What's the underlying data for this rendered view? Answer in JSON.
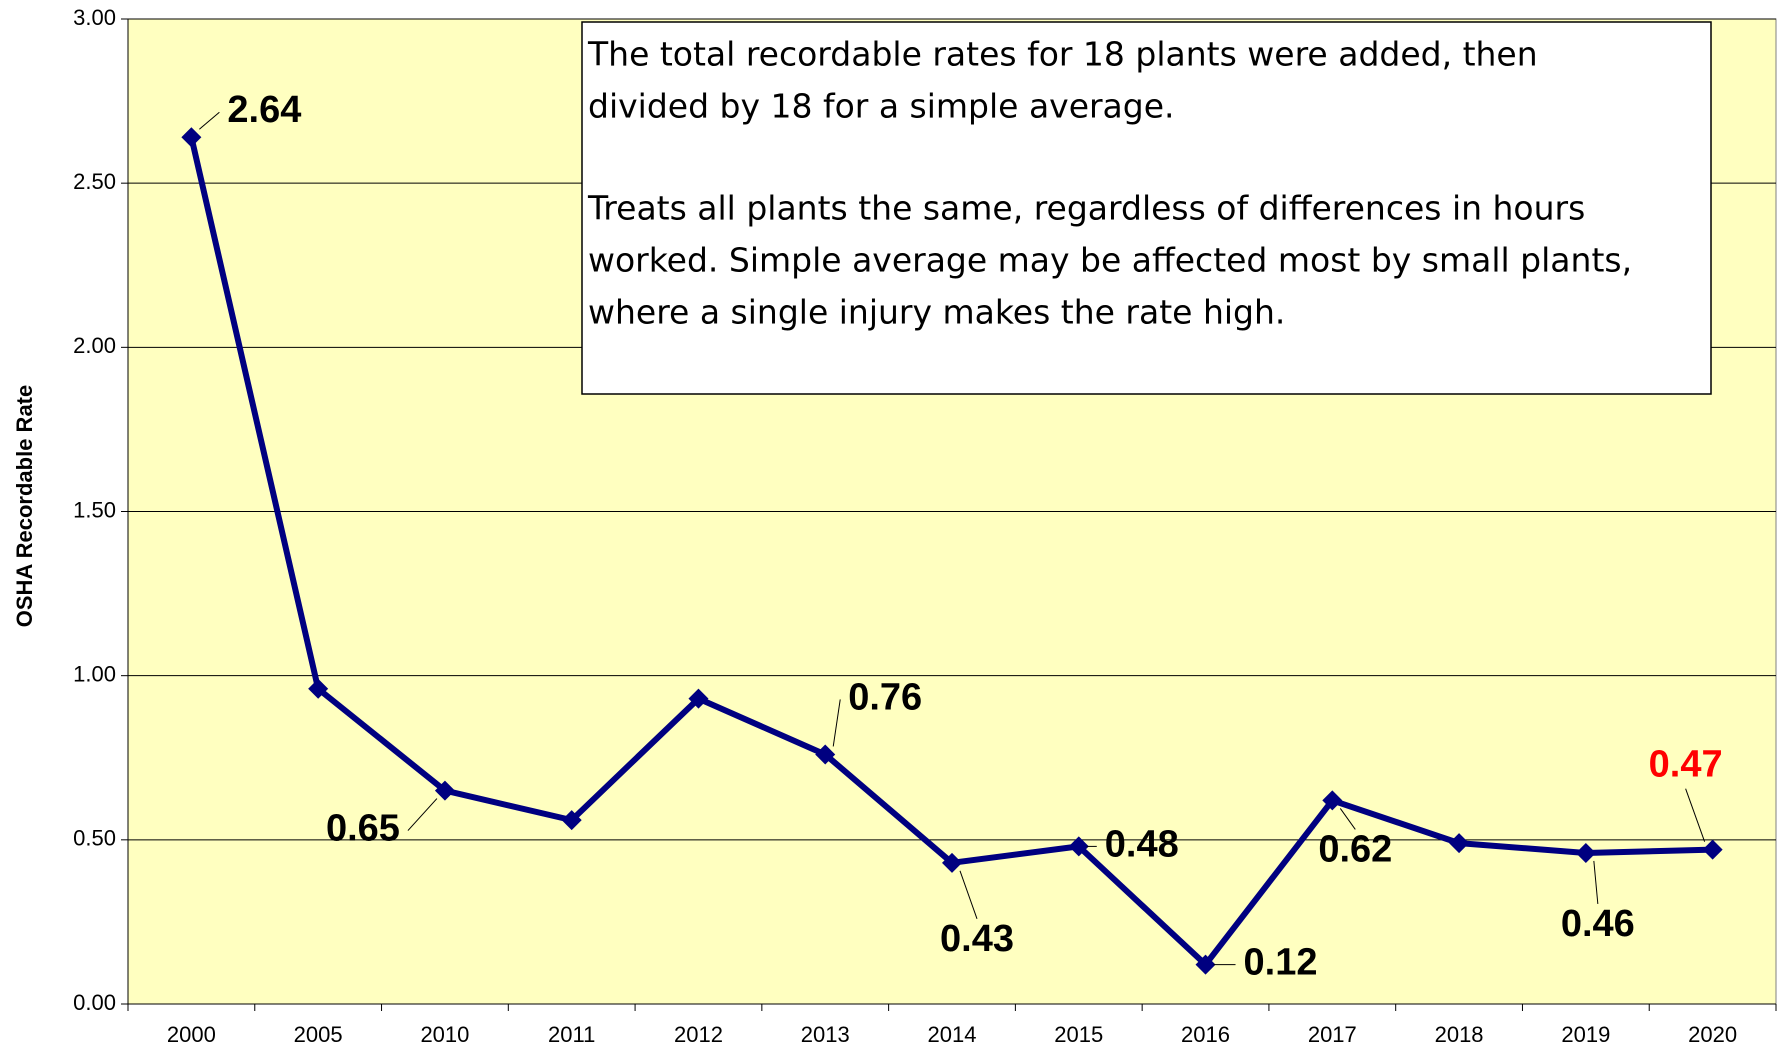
{
  "chart_data": {
    "type": "line",
    "y_label": "OSHA Recordable Rate",
    "annotation": [
      "The total recordable rates for 18 plants were added, then",
      "divided by 18 for a simple average.",
      "Treats all plants the same, regardless of differences in hours",
      "worked. Simple average may be affected most by small plants,",
      "where a single injury makes the rate high."
    ],
    "categories": [
      "2000",
      "2005",
      "2010",
      "2011",
      "2012",
      "2013",
      "2014",
      "2015",
      "2016",
      "2017",
      "2018",
      "2019",
      "2020"
    ],
    "values": [
      2.64,
      0.96,
      0.65,
      0.56,
      0.93,
      0.76,
      0.43,
      0.48,
      0.12,
      0.62,
      0.49,
      0.46,
      0.47
    ],
    "value_labels": [
      "2.64",
      null,
      "0.65",
      null,
      null,
      "0.76",
      "0.43",
      "0.48",
      "0.12",
      "0.62",
      null,
      "0.46",
      "0.47"
    ],
    "value_label_colors": [
      "#000000",
      "#000000",
      "#000000",
      "#000000",
      "#000000",
      "#000000",
      "#000000",
      "#000000",
      "#000000",
      "#000000",
      "#000000",
      "#000000",
      "#ff0000"
    ],
    "color": "#000080",
    "background": "#ffffc0",
    "ylim": [
      0,
      3
    ],
    "yticks": [
      {
        "value": 0,
        "label": "0.00"
      },
      {
        "value": 0.5,
        "label": "0.50"
      },
      {
        "value": 1,
        "label": "1.00"
      },
      {
        "value": 1.5,
        "label": "1.50"
      },
      {
        "value": 2,
        "label": "2.00"
      },
      {
        "value": 2.5,
        "label": "2.50"
      },
      {
        "value": 3,
        "label": "3.00"
      }
    ],
    "grid": true
  }
}
